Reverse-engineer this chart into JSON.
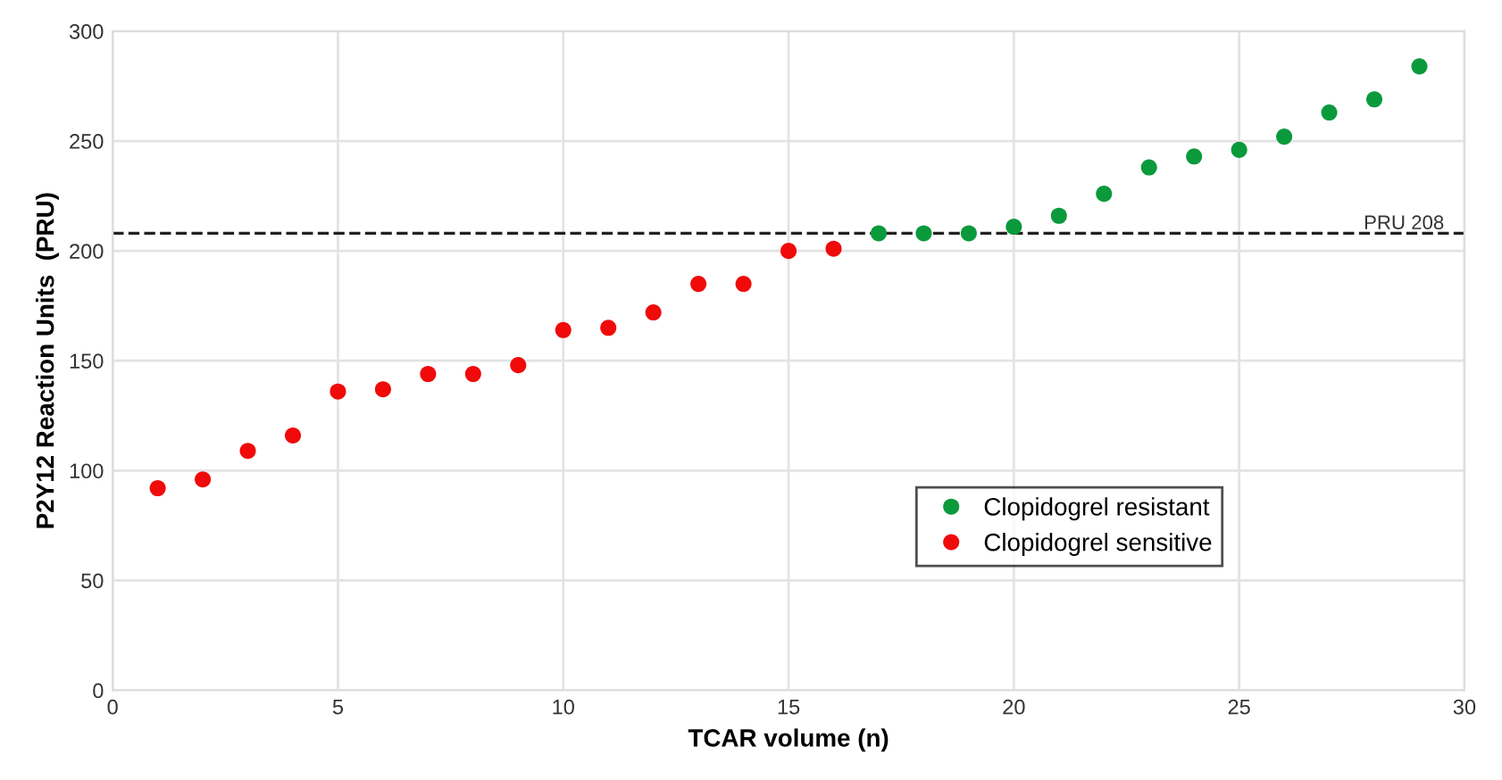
{
  "chart_data": {
    "type": "scatter",
    "xlabel": "TCAR volume (n)",
    "ylabel": "P2Y12 Reaction Units  (PRU)",
    "xlim": [
      0,
      30
    ],
    "xticks": [
      0,
      5,
      10,
      15,
      20,
      25,
      30
    ],
    "ylim": [
      0,
      300
    ],
    "yticks": [
      0,
      50,
      100,
      150,
      200,
      250,
      300
    ],
    "grid": true,
    "legend": "bottom right",
    "marker": "circle",
    "series": [
      {
        "name": "Clopidogrel resistant",
        "color": "#0a9a3c",
        "x": [
          17,
          18,
          19,
          20,
          21,
          22,
          23,
          24,
          25,
          26,
          27,
          28,
          29
        ],
        "values": [
          208,
          208,
          208,
          211,
          216,
          226,
          238,
          243,
          246,
          252,
          263,
          269,
          284
        ]
      },
      {
        "name": "Clopidogrel sensitive",
        "color": "#f00a0a",
        "x": [
          1,
          2,
          3,
          4,
          5,
          6,
          7,
          8,
          9,
          10,
          11,
          12,
          13,
          14,
          15,
          16
        ],
        "values": [
          92,
          96,
          109,
          116,
          136,
          137,
          144,
          144,
          148,
          164,
          165,
          172,
          185,
          185,
          200,
          201
        ]
      }
    ],
    "ref_lines": [
      {
        "axis": "y",
        "value": 208,
        "label": "PRU 208",
        "color": "#222222",
        "line_style": "dashed"
      }
    ]
  }
}
